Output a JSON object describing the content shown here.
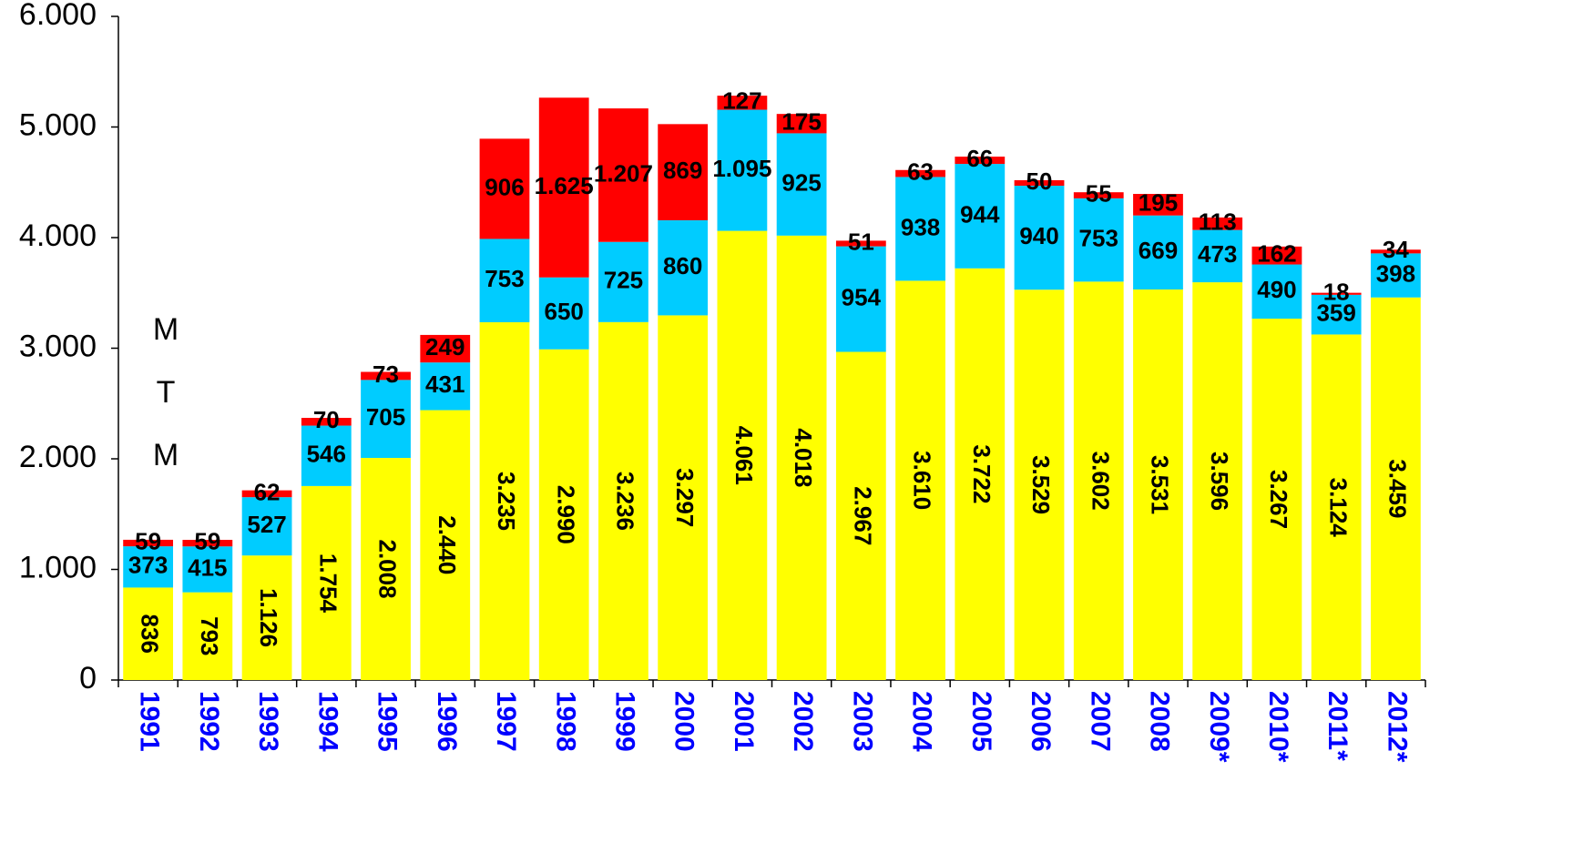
{
  "chart_data": {
    "type": "stacked_bar",
    "ylabel_letters": [
      "M",
      "T",
      "M"
    ],
    "categories": [
      "1991",
      "1992",
      "1993",
      "1994",
      "1995",
      "1996",
      "1997",
      "1998",
      "1999",
      "2000",
      "2001",
      "2002",
      "2003",
      "2004",
      "2005",
      "2006",
      "2007",
      "2008",
      "2009*",
      "2010*",
      "2011*",
      "2012*"
    ],
    "series": [
      {
        "color": "#ffff00",
        "values": [
          836,
          793,
          1126,
          1754,
          2008,
          2440,
          3235,
          2990,
          3236,
          3297,
          4061,
          4018,
          2967,
          3610,
          3722,
          3529,
          3602,
          3531,
          3596,
          3267,
          3124,
          3459
        ],
        "value_labels": [
          "836",
          "793",
          "1.126",
          "1.754",
          "2.008",
          "2.440",
          "3.235",
          "2.990",
          "3.236",
          "3.297",
          "4.061",
          "4.018",
          "2.967",
          "3.610",
          "3.722",
          "3.529",
          "3.602",
          "3.531",
          "3.596",
          "3.267",
          "3.124",
          "3.459"
        ]
      },
      {
        "color": "#00ccff",
        "values": [
          373,
          415,
          527,
          546,
          705,
          431,
          753,
          650,
          725,
          860,
          1095,
          925,
          954,
          938,
          944,
          940,
          753,
          669,
          473,
          490,
          359,
          398
        ],
        "value_labels": [
          "373",
          "415",
          "527",
          "546",
          "705",
          "431",
          "753",
          "650",
          "725",
          "860",
          "1.095",
          "925",
          "954",
          "938",
          "944",
          "940",
          "753",
          "669",
          "473",
          "490",
          "359",
          "398"
        ]
      },
      {
        "color": "#ff0000",
        "values": [
          59,
          59,
          62,
          70,
          73,
          249,
          906,
          1625,
          1207,
          869,
          127,
          175,
          51,
          63,
          66,
          50,
          55,
          195,
          113,
          162,
          18,
          34
        ],
        "value_labels": [
          "59",
          "59",
          "62",
          "70",
          "73",
          "249",
          "906",
          "1.625",
          "1.207",
          "869",
          "127",
          "175",
          "51",
          "63",
          "66",
          "50",
          "55",
          "195",
          "113",
          "162",
          "18",
          "34"
        ]
      }
    ],
    "ylim": [
      0,
      6000
    ],
    "yticks": [
      0,
      {
        "value": 1000,
        "label": "1.000"
      },
      {
        "value": 2000,
        "label": "2.000"
      },
      {
        "value": 3000,
        "label": "3.000"
      },
      {
        "value": 4000,
        "label": "4.000"
      },
      {
        "value": 5000,
        "label": "5.000"
      },
      {
        "value": 6000,
        "label": "6.000"
      }
    ],
    "category_color": "#0000ff"
  }
}
